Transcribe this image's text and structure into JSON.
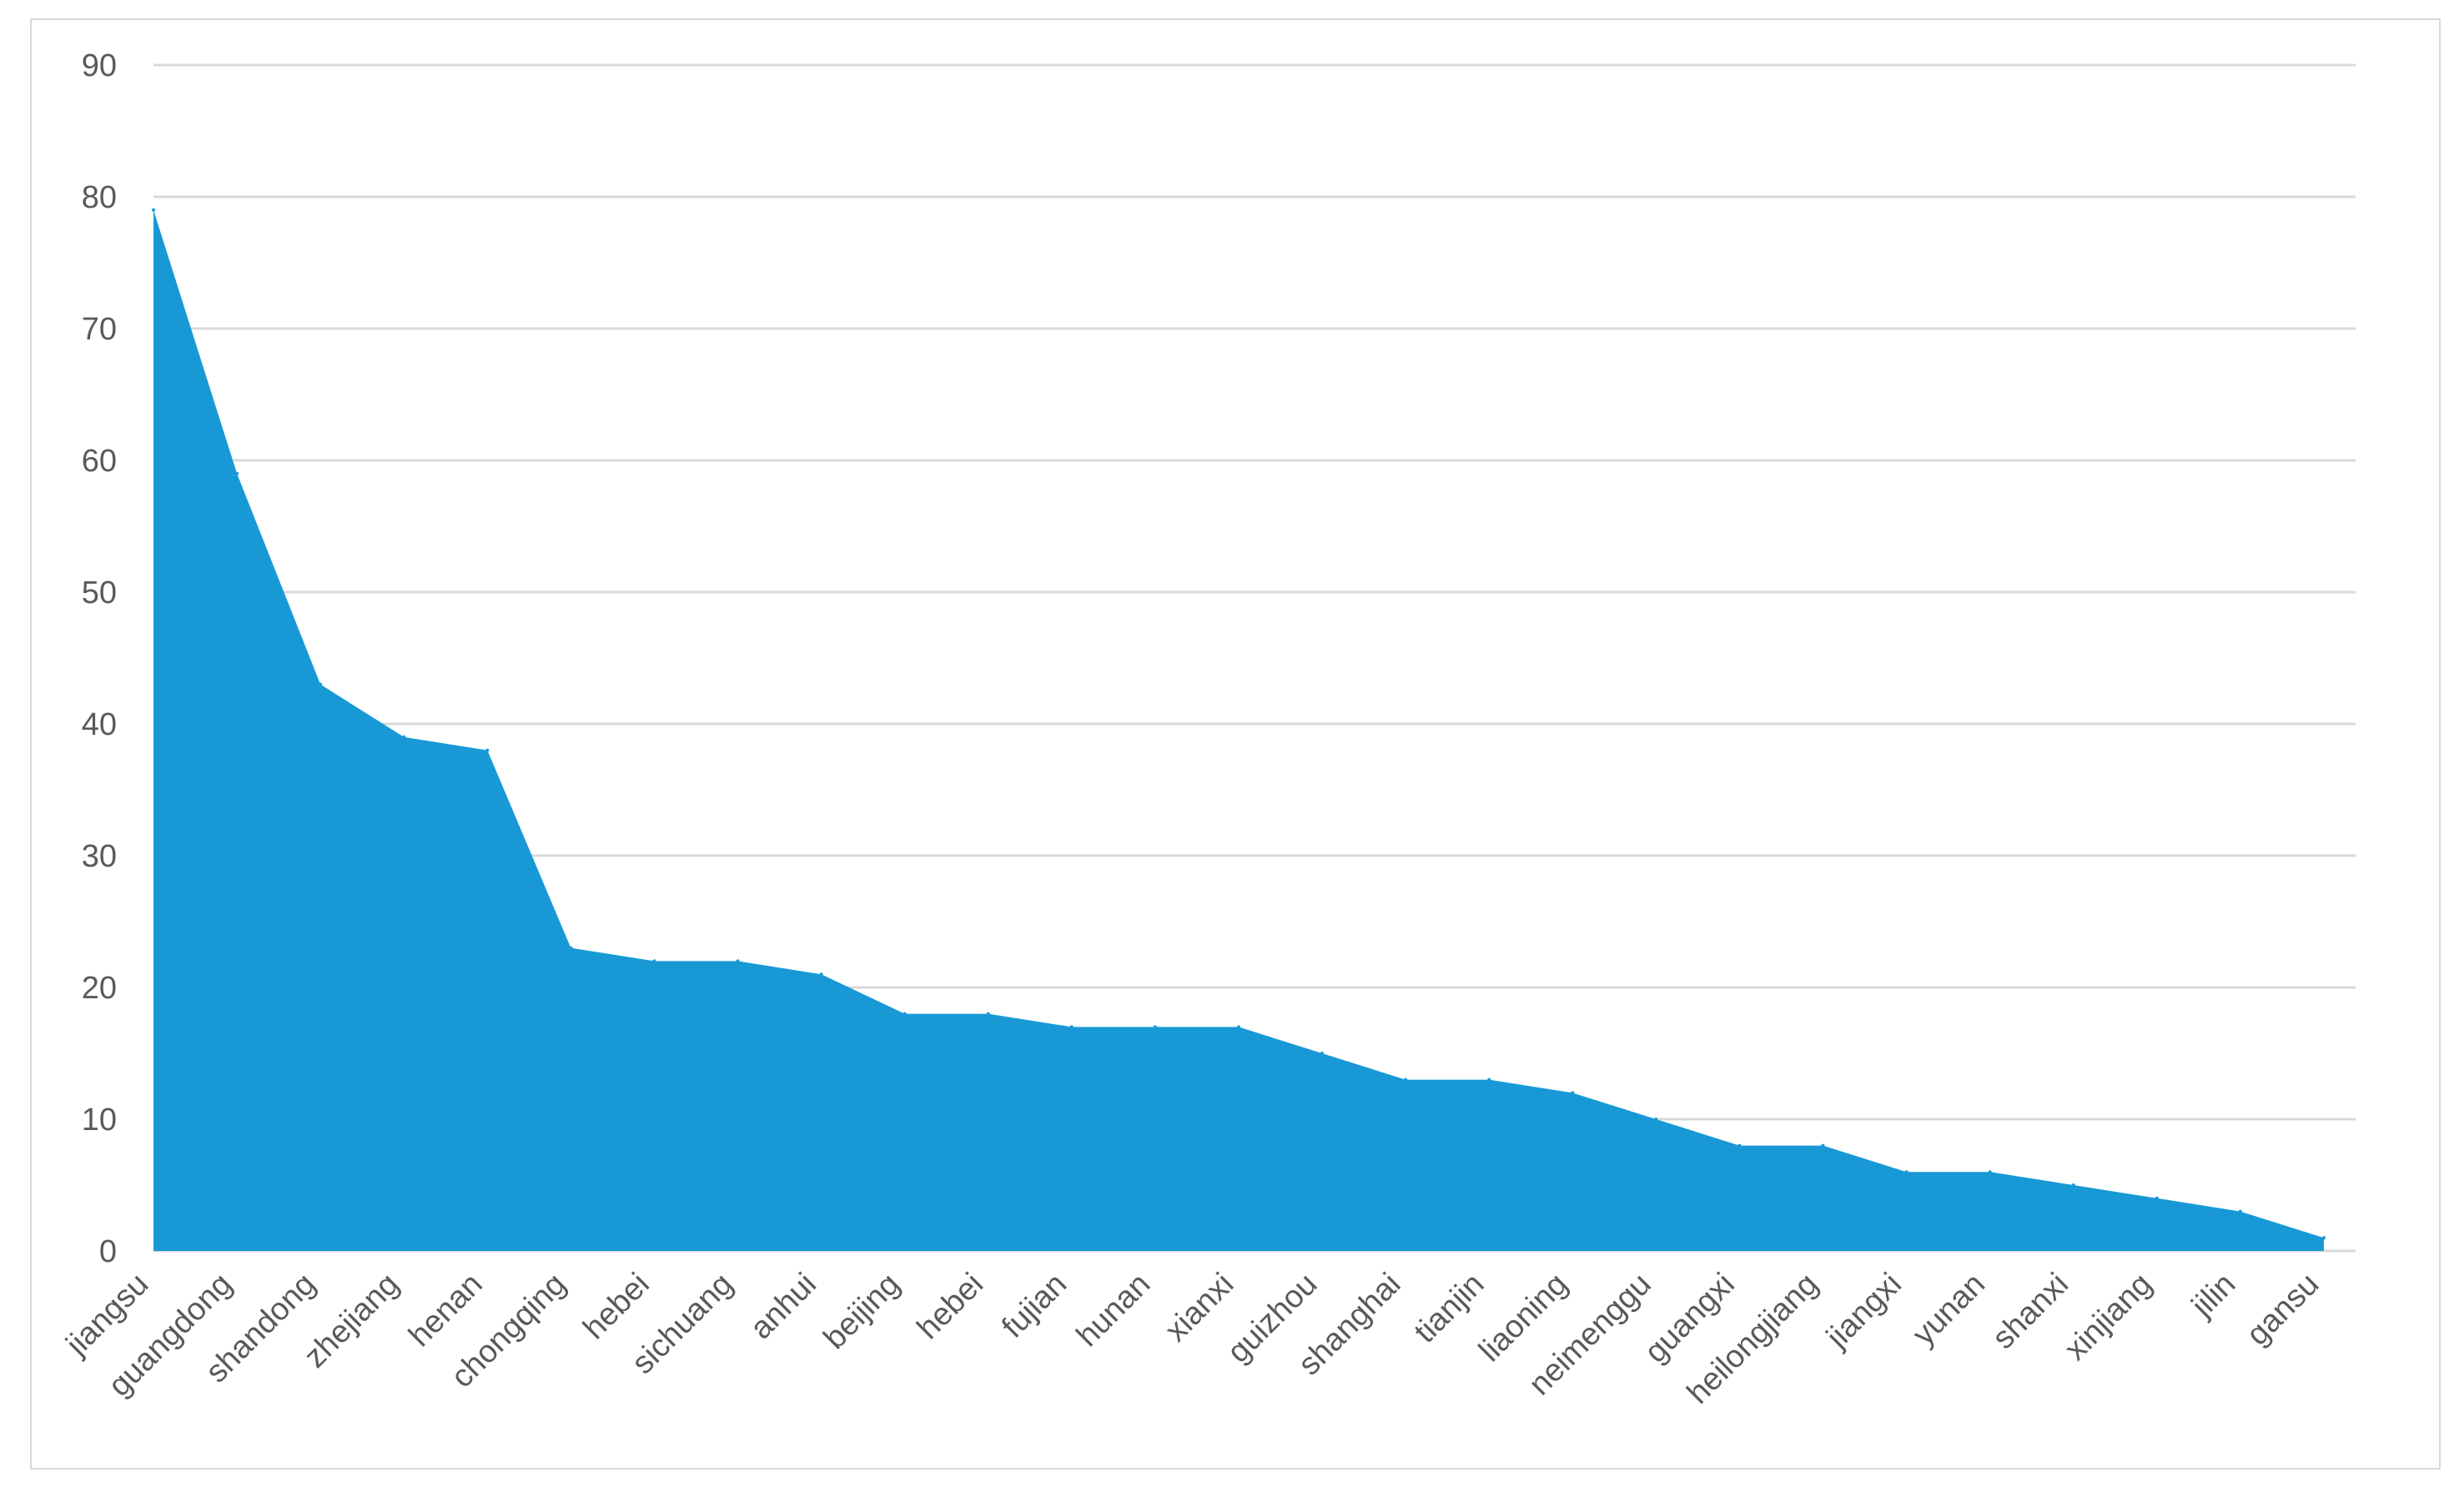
{
  "chart_data": {
    "type": "area",
    "categories": [
      "jiangsu",
      "guangdong",
      "shandong",
      "zhejiang",
      "henan",
      "chongqing",
      "hebei",
      "sichuang",
      "anhui",
      "beijing",
      "hebei",
      "fujian",
      "hunan",
      "xianxi",
      "guizhou",
      "shanghai",
      "tianjin",
      "liaoning",
      "neimenggu",
      "guangxi",
      "heilongjiang",
      "jiangxi",
      "yunan",
      "shanxi",
      "xinjiang",
      "jilin",
      "gansu"
    ],
    "values": [
      79,
      59,
      43,
      39,
      38,
      23,
      22,
      22,
      21,
      18,
      18,
      17,
      17,
      17,
      15,
      13,
      13,
      12,
      10,
      8,
      8,
      6,
      6,
      5,
      4,
      3,
      1
    ],
    "ylim": [
      0,
      90
    ],
    "yticks": [
      0,
      10,
      20,
      30,
      40,
      50,
      60,
      70,
      80,
      90
    ],
    "grid": true,
    "legend": "none",
    "title": "",
    "xlabel": "",
    "ylabel": "",
    "fill_color": "#1899d6",
    "grid_color": "#d9d9d9",
    "tick_label_color": "#595959"
  }
}
